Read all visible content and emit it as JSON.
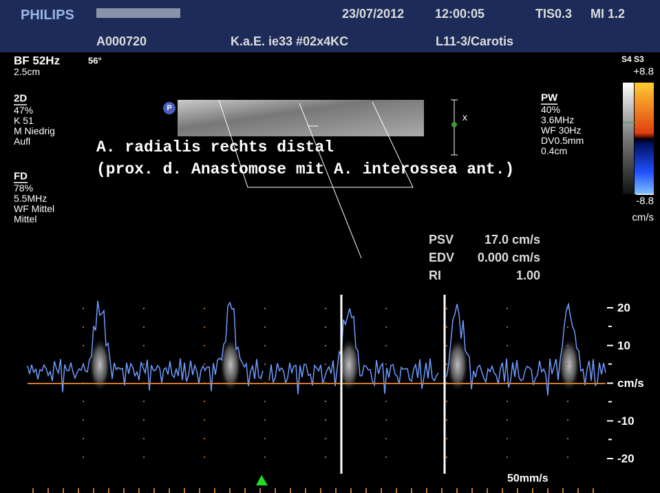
{
  "header": {
    "brand": "PHILIPS",
    "date": "23/07/2012",
    "time": "12:00:05",
    "tis": "TIS0.3",
    "mi": "MI 1.2",
    "patient_id": "A000720",
    "institution": "K.a.E. ie33 #02x4KC",
    "probe": "L11-3/Carotis"
  },
  "left_panel": {
    "bf": "BF 52Hz",
    "depth": "2.5cm",
    "angle": "56°",
    "mode_2d": {
      "title": "2D",
      "lines": [
        "47%",
        "K 51",
        "M Niedrig",
        "Aufl"
      ]
    },
    "mode_fd": {
      "title": "FD",
      "lines": [
        "78%",
        "5.5MHz",
        "WF Mittel",
        "Mittel"
      ]
    }
  },
  "right_panel": {
    "map": "S4 S3",
    "scale_top": "+8.8",
    "scale_bottom": "-8.8",
    "scale_unit": "cm/s",
    "pw": {
      "title": "PW",
      "lines": [
        "40%",
        "3.6MHz",
        "WF  30Hz",
        "DV0.5mm",
        "0.4cm"
      ]
    }
  },
  "image": {
    "marker": "P",
    "gate": "x"
  },
  "annotation": [
    "A. radialis rechts distal",
    "(prox. d. Anastomose mit A. interossea ant.)"
  ],
  "measurements": [
    {
      "label": "PSV",
      "value": "17.0 cm/s"
    },
    {
      "label": "EDV",
      "value": "0.000 cm/s"
    },
    {
      "label": "RI",
      "value": "1.00"
    }
  ],
  "spectrum_scale": [
    "20",
    "10",
    "cm/s",
    "-10",
    "-20"
  ],
  "sweep_speed": "50mm/s"
}
